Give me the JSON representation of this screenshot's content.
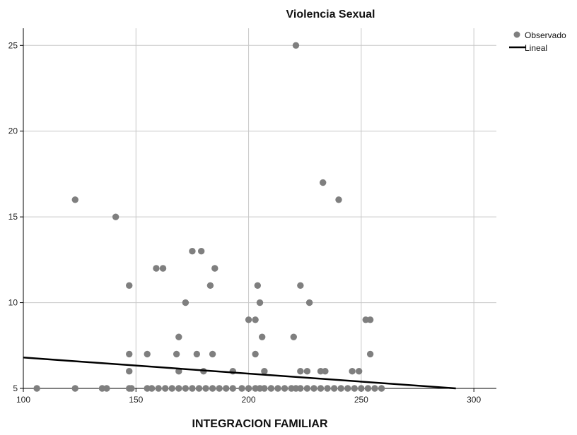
{
  "chart_data": {
    "type": "scatter",
    "title": "Violencia Sexual",
    "xlabel": "INTEGRACION FAMILIAR",
    "ylabel": "",
    "xlim": [
      100,
      310
    ],
    "ylim": [
      5,
      26
    ],
    "xticks": [
      100,
      150,
      200,
      250,
      300
    ],
    "yticks": [
      5,
      10,
      15,
      20,
      25
    ],
    "grid": true,
    "legend_position": "top-right",
    "colors": {
      "points": "#7f7f7f",
      "line": "#000000",
      "grid": "#c8c8c8",
      "axis": "#000000"
    },
    "legend": [
      {
        "label": "Observado",
        "kind": "marker"
      },
      {
        "label": "Lineal",
        "kind": "line"
      }
    ],
    "series": [
      {
        "name": "Observado",
        "kind": "points",
        "points": [
          [
            106,
            5
          ],
          [
            123,
            5
          ],
          [
            135,
            5
          ],
          [
            137,
            5
          ],
          [
            147,
            5
          ],
          [
            148,
            5
          ],
          [
            155,
            5
          ],
          [
            157,
            5
          ],
          [
            160,
            5
          ],
          [
            163,
            5
          ],
          [
            166,
            5
          ],
          [
            169,
            5
          ],
          [
            172,
            5
          ],
          [
            175,
            5
          ],
          [
            178,
            5
          ],
          [
            181,
            5
          ],
          [
            184,
            5
          ],
          [
            187,
            5
          ],
          [
            190,
            5
          ],
          [
            193,
            5
          ],
          [
            197,
            5
          ],
          [
            200,
            5
          ],
          [
            203,
            5
          ],
          [
            205,
            5
          ],
          [
            207,
            5
          ],
          [
            210,
            5
          ],
          [
            213,
            5
          ],
          [
            216,
            5
          ],
          [
            219,
            5
          ],
          [
            221,
            5
          ],
          [
            223,
            5
          ],
          [
            226,
            5
          ],
          [
            229,
            5
          ],
          [
            232,
            5
          ],
          [
            235,
            5
          ],
          [
            238,
            5
          ],
          [
            241,
            5
          ],
          [
            244,
            5
          ],
          [
            247,
            5
          ],
          [
            250,
            5
          ],
          [
            253,
            5
          ],
          [
            256,
            5
          ],
          [
            259,
            5
          ],
          [
            123,
            16
          ],
          [
            141,
            15
          ],
          [
            147,
            11
          ],
          [
            147,
            7
          ],
          [
            147,
            6
          ],
          [
            155,
            7
          ],
          [
            159,
            12
          ],
          [
            162,
            12
          ],
          [
            168,
            7
          ],
          [
            169,
            8
          ],
          [
            169,
            6
          ],
          [
            172,
            10
          ],
          [
            175,
            13
          ],
          [
            177,
            7
          ],
          [
            179,
            13
          ],
          [
            180,
            6
          ],
          [
            183,
            11
          ],
          [
            184,
            7
          ],
          [
            185,
            12
          ],
          [
            193,
            6
          ],
          [
            200,
            9
          ],
          [
            203,
            9
          ],
          [
            203,
            7
          ],
          [
            204,
            11
          ],
          [
            205,
            10
          ],
          [
            206,
            8
          ],
          [
            207,
            6
          ],
          [
            220,
            8
          ],
          [
            221,
            25
          ],
          [
            223,
            11
          ],
          [
            223,
            6
          ],
          [
            226,
            6
          ],
          [
            227,
            10
          ],
          [
            232,
            6
          ],
          [
            233,
            17
          ],
          [
            234,
            6
          ],
          [
            240,
            16
          ],
          [
            246,
            6
          ],
          [
            249,
            6
          ],
          [
            252,
            9
          ],
          [
            254,
            9
          ],
          [
            254,
            7
          ]
        ]
      },
      {
        "name": "Lineal",
        "kind": "line",
        "points": [
          [
            100,
            6.8
          ],
          [
            292,
            5.0
          ]
        ]
      }
    ]
  }
}
